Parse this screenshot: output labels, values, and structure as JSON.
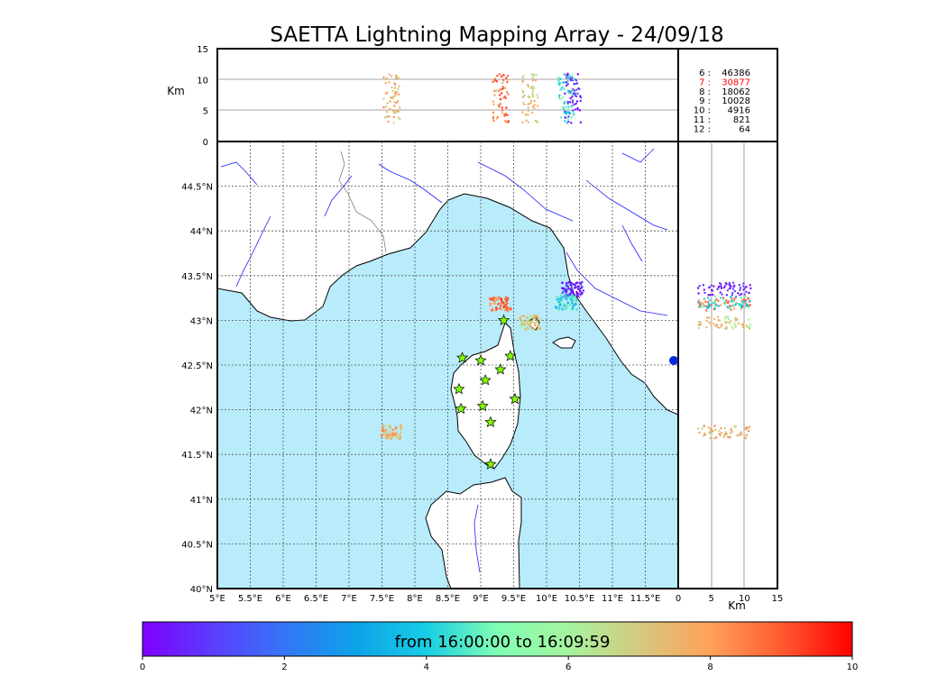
{
  "title": "SAETTA Lightning Mapping Array - 24/09/18",
  "colorbar": {
    "label": "from 16:00:00 to 16:09:59",
    "ticks": [
      "0",
      "2",
      "4",
      "6",
      "8",
      "10"
    ],
    "range": [
      0,
      10
    ],
    "colormap": "rainbow"
  },
  "colors": {
    "sea": "#b8ecfb",
    "coast": "#000000",
    "rivers": "#2020ff",
    "borders": "#555555",
    "grid": "#555555",
    "station_fill": "#80ff00"
  },
  "counts": [
    {
      "label": "6 :",
      "value": "46386",
      "color": "#000000"
    },
    {
      "label": "7 :",
      "value": "30877",
      "color": "#ff0000"
    },
    {
      "label": "8 :",
      "value": "18062",
      "color": "#000000"
    },
    {
      "label": "9 :",
      "value": "10028",
      "color": "#000000"
    },
    {
      "label": "10 :",
      "value": "4916",
      "color": "#000000"
    },
    {
      "label": "11 :",
      "value": "821",
      "color": "#000000"
    },
    {
      "label": "12 :",
      "value": "64",
      "color": "#000000"
    }
  ],
  "chart_data": {
    "type": "scatter",
    "map": {
      "xlim": [
        5,
        12
      ],
      "ylim": [
        40,
        45
      ],
      "xticks": [
        5,
        5.5,
        6,
        6.5,
        7,
        7.5,
        8,
        8.5,
        9,
        9.5,
        10,
        10.5,
        11,
        11.5
      ],
      "xtick_labels": [
        "5°E",
        "5.5°E",
        "6°E",
        "6.5°E",
        "7°E",
        "7.5°E",
        "8°E",
        "8.5°E",
        "9°E",
        "9.5°E",
        "10°E",
        "10.5°E",
        "11°E",
        "11.5°E"
      ],
      "yticks": [
        40,
        40.5,
        41,
        41.5,
        42,
        42.5,
        43,
        43.5,
        44,
        44.5
      ],
      "ytick_labels": [
        "40°N",
        "40.5°N",
        "41°N",
        "41.5°N",
        "42°N",
        "42.5°N",
        "43°N",
        "43.5°N",
        "44°N",
        "44.5°N"
      ],
      "grid": true,
      "stations": [
        [
          9.35,
          43.0
        ],
        [
          8.72,
          42.58
        ],
        [
          9.0,
          42.55
        ],
        [
          9.45,
          42.6
        ],
        [
          9.3,
          42.45
        ],
        [
          9.07,
          42.33
        ],
        [
          8.67,
          42.23
        ],
        [
          9.52,
          42.12
        ],
        [
          8.7,
          42.01
        ],
        [
          9.03,
          42.04
        ],
        [
          9.15,
          41.86
        ],
        [
          9.15,
          41.39
        ]
      ],
      "lightning_clusters": [
        {
          "lon": 7.65,
          "lat": 41.75,
          "time": 7.5
        },
        {
          "lon": 9.3,
          "lat": 43.18,
          "time": 8.5
        },
        {
          "lon": 9.75,
          "lat": 42.97,
          "time": 7.0
        },
        {
          "lon": 10.4,
          "lat": 43.35,
          "time": 0.5
        },
        {
          "lon": 10.3,
          "lat": 43.2,
          "time": 4.0
        }
      ]
    },
    "altitude_vs_lon": {
      "ylabel": "Km",
      "ylim": [
        0,
        15
      ],
      "yticks": [
        0,
        5,
        10,
        15
      ],
      "hlines": [
        5,
        10
      ]
    },
    "altitude_vs_lat": {
      "xlabel": "Km",
      "xlim": [
        0,
        15
      ],
      "xticks": [
        0,
        5,
        10,
        15
      ],
      "vlines": [
        5,
        10
      ]
    }
  }
}
